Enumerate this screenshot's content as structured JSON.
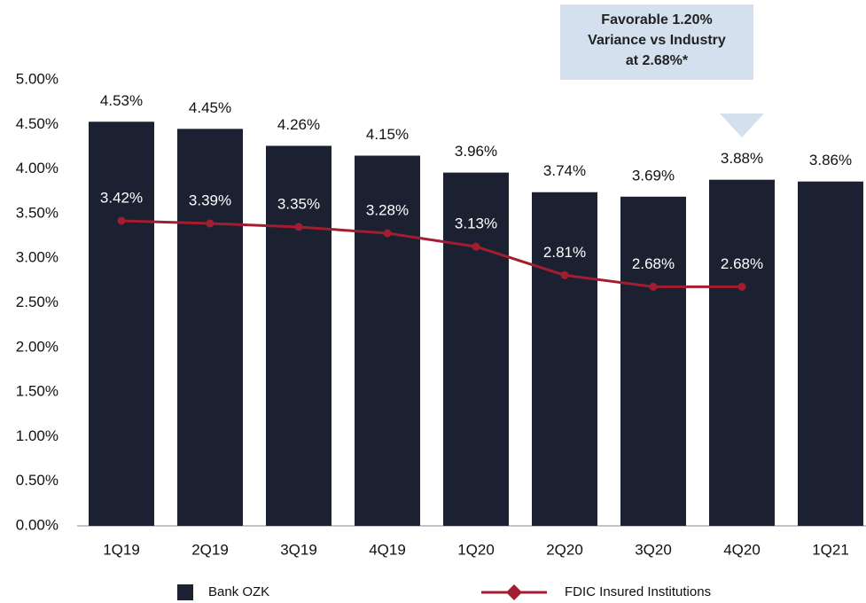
{
  "chart_data": {
    "type": "bar",
    "categories": [
      "1Q19",
      "2Q19",
      "3Q19",
      "4Q19",
      "1Q20",
      "2Q20",
      "3Q20",
      "4Q20",
      "1Q21"
    ],
    "series": [
      {
        "name": "Bank OZK",
        "color": "#1b2130",
        "type": "bar",
        "values": [
          4.53,
          4.45,
          4.26,
          4.15,
          3.96,
          3.74,
          3.69,
          3.88,
          3.86
        ],
        "value_labels": [
          "4.53%",
          "4.45%",
          "4.26%",
          "4.15%",
          "3.96%",
          "3.74%",
          "3.69%",
          "3.88%",
          "3.86%"
        ]
      },
      {
        "name": "FDIC Insured Institutions",
        "color": "#a31d30",
        "type": "line",
        "values": [
          3.42,
          3.39,
          3.35,
          3.28,
          3.13,
          2.81,
          2.68,
          2.68,
          null
        ],
        "value_labels": [
          "3.42%",
          "3.39%",
          "3.35%",
          "3.28%",
          "3.13%",
          "2.81%",
          "2.68%",
          "2.68%",
          null
        ]
      }
    ],
    "ylim": [
      0,
      5
    ],
    "yticks": [
      {
        "value": 0,
        "label": "0.00%"
      },
      {
        "value": 0.5,
        "label": "0.50%"
      },
      {
        "value": 1,
        "label": "1.00%"
      },
      {
        "value": 1.5,
        "label": "1.50%"
      },
      {
        "value": 2,
        "label": "2.00%"
      },
      {
        "value": 2.5,
        "label": "2.50%"
      },
      {
        "value": 3,
        "label": "3.00%"
      },
      {
        "value": 3.5,
        "label": "3.50%"
      },
      {
        "value": 4,
        "label": "4.00%"
      },
      {
        "value": 4.5,
        "label": "4.50%"
      },
      {
        "value": 5,
        "label": "5.00%"
      }
    ],
    "grid": false,
    "legend": "bottom",
    "annotation": [
      "Favorable 1.20%",
      "Variance vs Industry",
      "at 2.68%*"
    ]
  }
}
